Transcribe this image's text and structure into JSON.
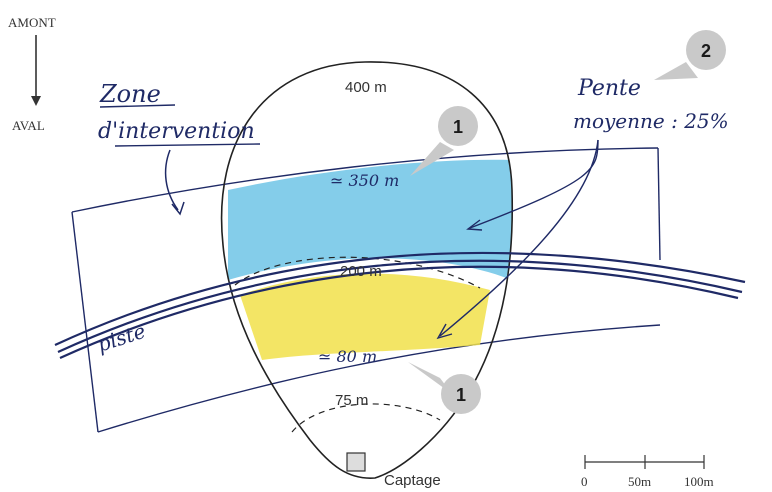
{
  "orientation": {
    "upstream": "AMONT",
    "downstream": "AVAL"
  },
  "zone": {
    "line1": "Zone",
    "line2": "d'intervention"
  },
  "slope": {
    "line1": "Pente",
    "line2": "moyenne : 25%"
  },
  "contours": {
    "top": "400 m",
    "middle": "200 m",
    "bottom": "75 m"
  },
  "zone_limits": {
    "upper": "≃ 350 m",
    "lower": "≃ 80 m"
  },
  "track_label": "piste",
  "source_label": "Captage",
  "badges": {
    "upper": "1",
    "lower": "1",
    "slope": "2"
  },
  "scale": {
    "ticks": [
      "0",
      "50m",
      "100m"
    ]
  },
  "colors": {
    "ink": "#1f2a66",
    "blue_fill": "#6fc4e6",
    "yellow_fill": "#f1e04a",
    "badge": "#c9c9c9",
    "outline": "#222222"
  }
}
